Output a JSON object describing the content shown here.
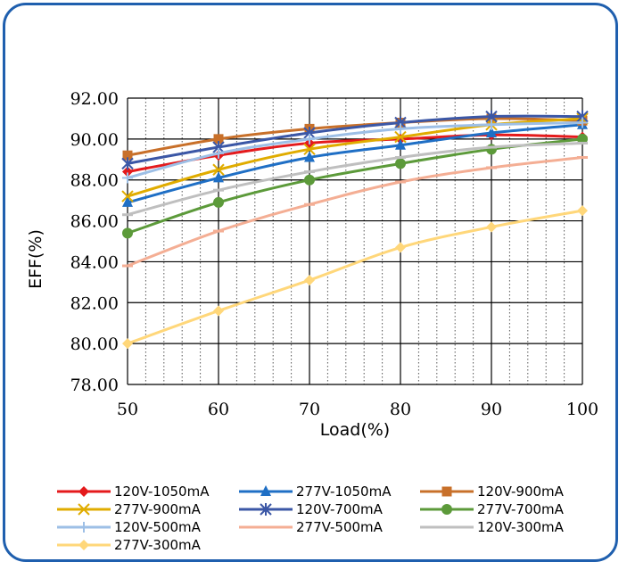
{
  "chart_data": {
    "type": "line",
    "title": "",
    "xlabel": "Load(%)",
    "ylabel": "EFF(%)",
    "x": [
      50,
      60,
      70,
      80,
      90,
      100
    ],
    "xlim": [
      50,
      100
    ],
    "ylim": [
      78,
      92
    ],
    "x_ticks": [
      "50",
      "60",
      "70",
      "80",
      "90",
      "100"
    ],
    "y_ticks": [
      "78.00",
      "80.00",
      "82.00",
      "84.00",
      "86.00",
      "88.00",
      "90.00",
      "92.00"
    ],
    "grid": "major solid, minor dotted vertical",
    "legend_position": "bottom",
    "series": [
      {
        "name": "120V-1050mA",
        "color": "#e41a1c",
        "marker": "diamond",
        "values": [
          88.4,
          89.2,
          89.8,
          90.0,
          90.2,
          90.1
        ]
      },
      {
        "name": "277V-1050mA",
        "color": "#1f6fc5",
        "marker": "triangle",
        "values": [
          86.9,
          88.1,
          89.1,
          89.7,
          90.3,
          90.7
        ]
      },
      {
        "name": "120V-900mA",
        "color": "#c8702a",
        "marker": "square",
        "values": [
          89.2,
          90.0,
          90.5,
          90.8,
          91.0,
          90.9
        ]
      },
      {
        "name": "277V-900mA",
        "color": "#e0ac00",
        "marker": "x",
        "values": [
          87.2,
          88.5,
          89.5,
          90.1,
          90.7,
          91.0
        ]
      },
      {
        "name": "120V-700mA",
        "color": "#3b57a6",
        "marker": "asterisk",
        "values": [
          88.8,
          89.6,
          90.3,
          90.8,
          91.1,
          91.1
        ]
      },
      {
        "name": "277V-700mA",
        "color": "#5c9a3a",
        "marker": "circle",
        "values": [
          85.4,
          86.9,
          88.0,
          88.8,
          89.5,
          90.0
        ]
      },
      {
        "name": "120V-500mA",
        "color": "#9dbfe6",
        "marker": "plus",
        "values": [
          88.1,
          89.3,
          90.0,
          90.5,
          90.7,
          90.8
        ]
      },
      {
        "name": "277V-500mA",
        "color": "#f4ae94",
        "marker": "dash",
        "values": [
          83.8,
          85.5,
          86.8,
          87.9,
          88.6,
          89.1
        ]
      },
      {
        "name": "120V-300mA",
        "color": "#bfbfbf",
        "marker": "dash",
        "values": [
          86.3,
          87.5,
          88.4,
          89.1,
          89.6,
          89.8
        ]
      },
      {
        "name": "277V-300mA",
        "color": "#ffd77a",
        "marker": "diamond",
        "values": [
          80.0,
          81.6,
          83.1,
          84.7,
          85.7,
          86.5
        ]
      }
    ]
  }
}
